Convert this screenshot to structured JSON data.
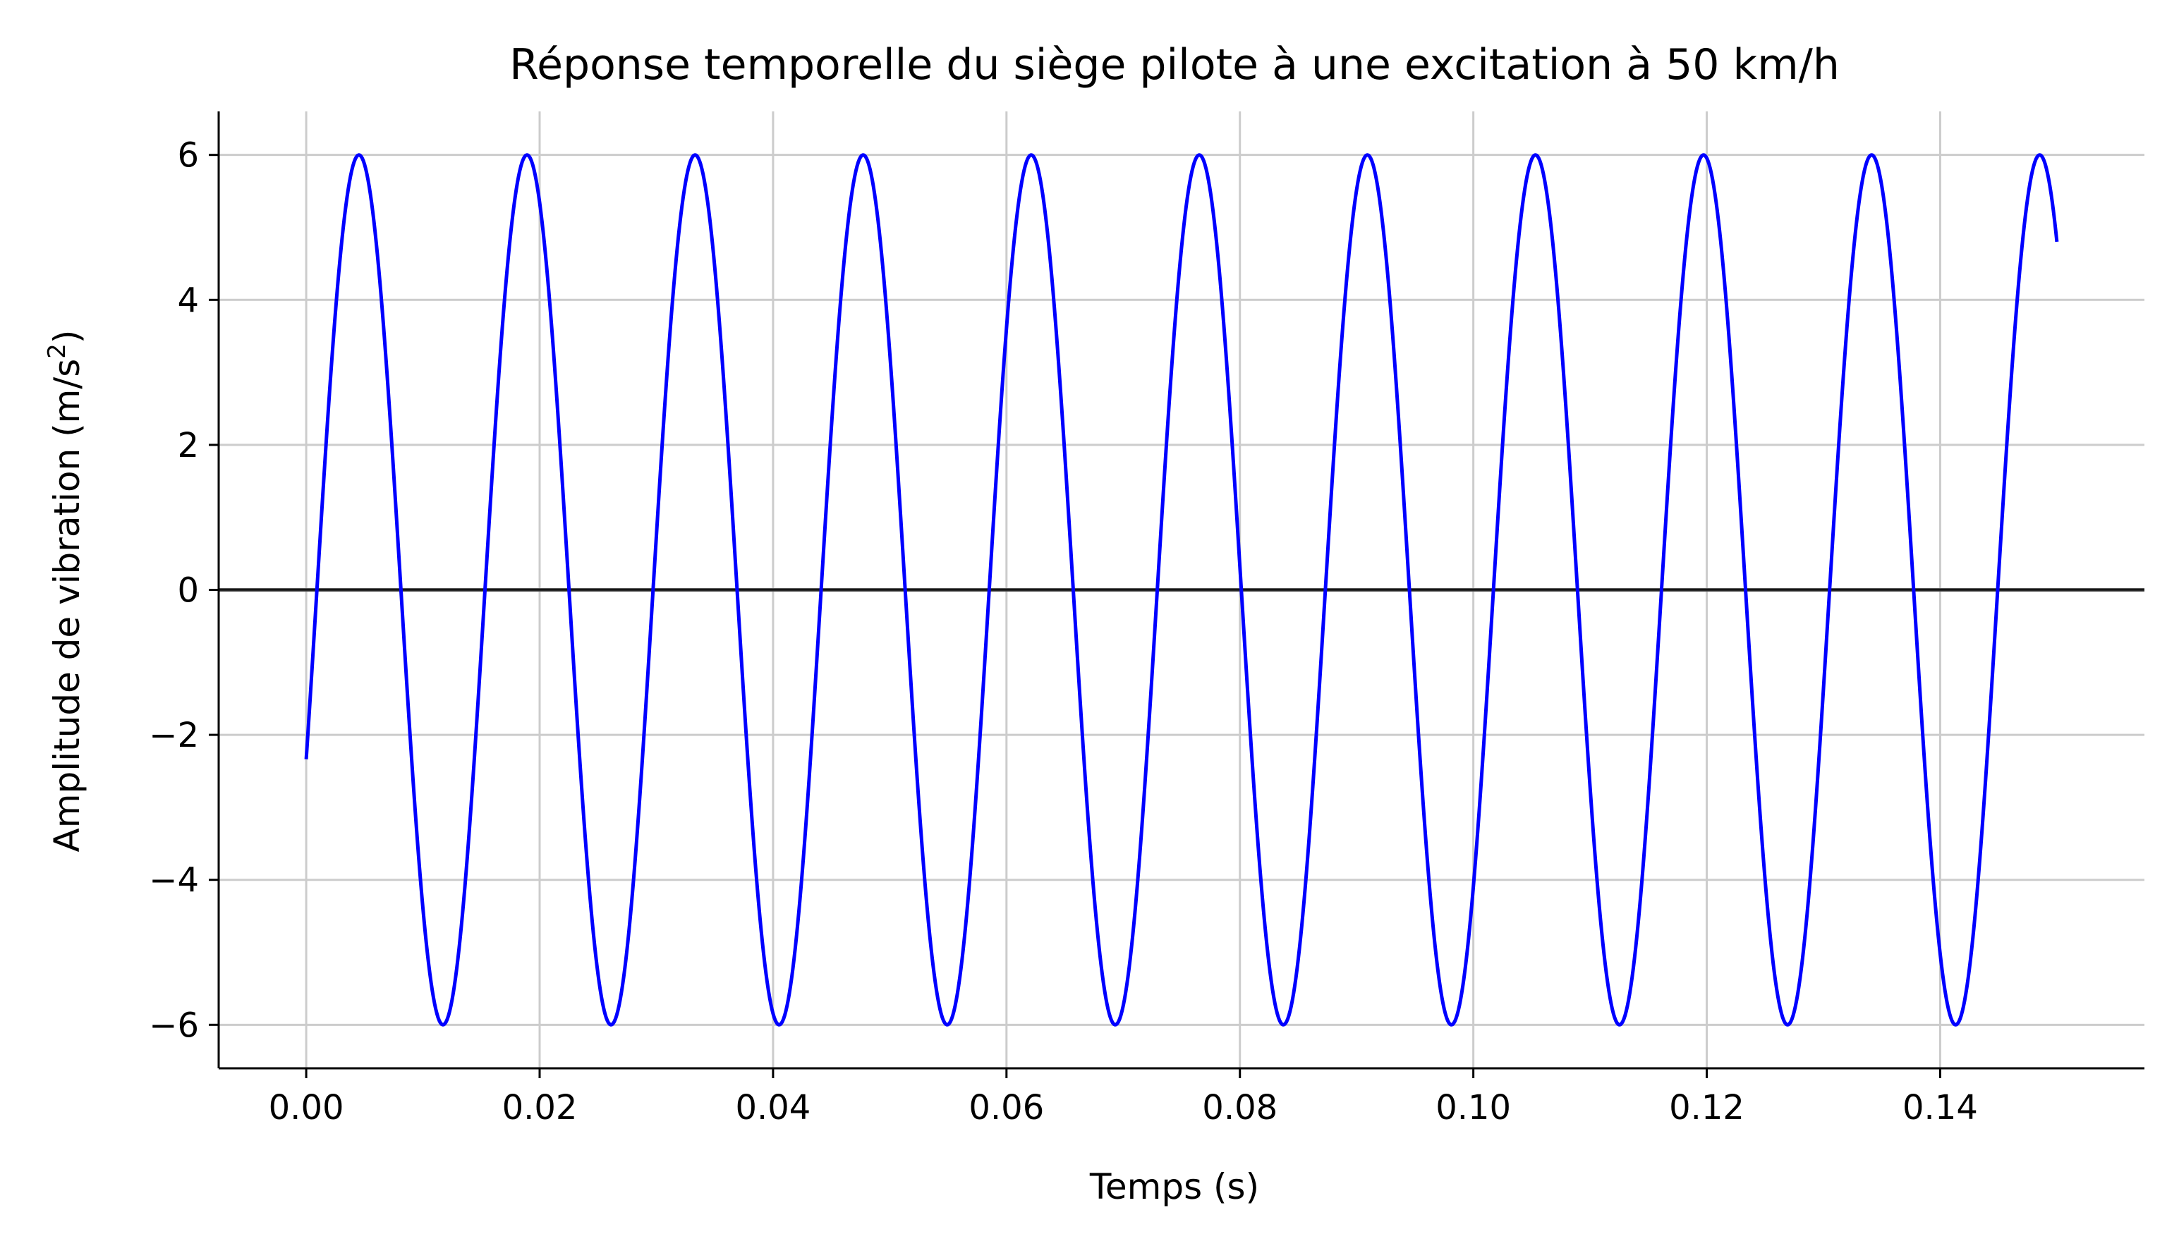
{
  "chart_data": {
    "type": "line",
    "title": "Réponse temporelle du siège pilote à une excitation à 50 km/h",
    "xlabel": "Temps (s)",
    "ylabel": "Amplitude de vibration (m/s",
    "ylabel_sup": "2",
    "ylabel_close": ")",
    "xlim": [
      -0.0075,
      0.1575
    ],
    "ylim": [
      -6.6,
      6.6
    ],
    "xticks": [
      0.0,
      0.02,
      0.04,
      0.06,
      0.08,
      0.1,
      0.12,
      0.14
    ],
    "xtick_labels": [
      "0.00",
      "0.02",
      "0.04",
      "0.06",
      "0.08",
      "0.10",
      "0.12",
      "0.14"
    ],
    "yticks": [
      -6,
      -4,
      -2,
      0,
      2,
      4,
      6
    ],
    "ytick_labels": [
      "−6",
      "−4",
      "−2",
      "0",
      "2",
      "4",
      "6"
    ],
    "grid": true,
    "reference_line_y": 0,
    "series": [
      {
        "color": "#0000ff",
        "function": "6 * sin(2*pi*69.44*t - 0.40)",
        "amplitude": 6,
        "frequency_hz": 69.44,
        "phase_rad": -0.4,
        "t_start": 0.0,
        "t_end": 0.15,
        "samples": 1500
      }
    ]
  }
}
